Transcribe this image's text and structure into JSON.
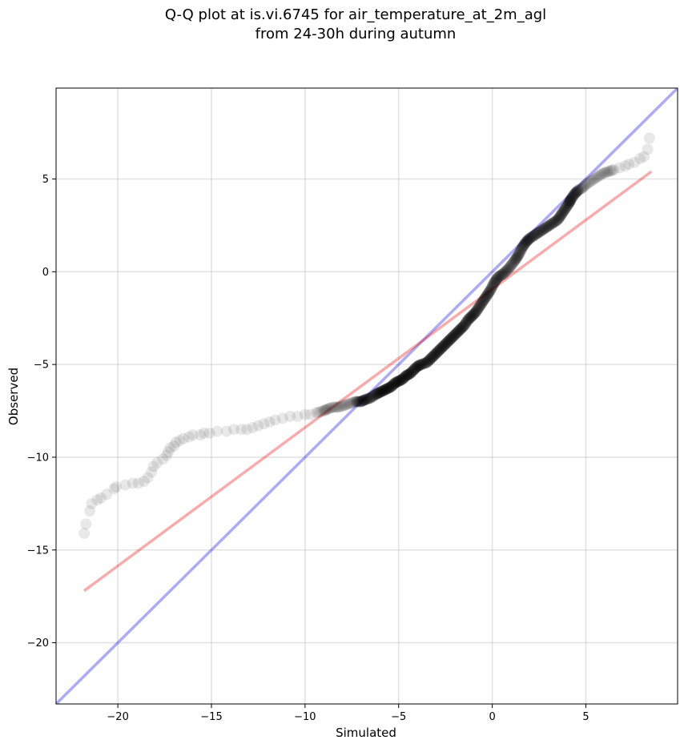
{
  "chart_data": {
    "type": "scatter",
    "title": [
      "Q-Q plot at is.vi.6745 for air_temperature_at_2m_agl",
      "from 24-30h during autumn"
    ],
    "xlabel": "Simulated",
    "ylabel": "Observed",
    "xlim": [
      -23.3,
      9.9
    ],
    "ylim": [
      -23.3,
      9.9
    ],
    "xticks": [
      -20,
      -15,
      -10,
      -5,
      0,
      5
    ],
    "yticks": [
      5,
      0,
      -5,
      -10,
      -15,
      -20
    ],
    "xtick_labels": [
      "−20",
      "−15",
      "−10",
      "−5",
      "0",
      "5"
    ],
    "ytick_labels": [
      "5",
      "0",
      "−5",
      "−10",
      "−15",
      "−20"
    ],
    "grid": true,
    "series": [
      {
        "kind": "quantile_points",
        "color": "#000000",
        "opacity": 0.09,
        "points": [
          [
            -21.8,
            -14.1
          ],
          [
            -21.7,
            -13.6
          ],
          [
            -21.5,
            -12.9
          ],
          [
            -21.4,
            -12.5
          ],
          [
            -21.1,
            -12.3
          ],
          [
            -20.9,
            -12.2
          ],
          [
            -20.6,
            -12.0
          ],
          [
            -20.2,
            -11.7
          ],
          [
            -20.1,
            -11.6
          ],
          [
            -19.6,
            -11.5
          ],
          [
            -19.2,
            -11.4
          ],
          [
            -18.9,
            -11.4
          ],
          [
            -18.6,
            -11.3
          ],
          [
            -18.4,
            -11.1
          ],
          [
            -18.2,
            -10.8
          ],
          [
            -18.1,
            -10.5
          ],
          [
            -17.9,
            -10.3
          ],
          [
            -17.6,
            -10.1
          ],
          [
            -17.4,
            -9.9
          ],
          [
            -17.3,
            -9.7
          ],
          [
            -17.2,
            -9.5
          ],
          [
            -17.0,
            -9.4
          ],
          [
            -16.9,
            -9.2
          ],
          [
            -16.7,
            -9.1
          ],
          [
            -16.5,
            -9.0
          ],
          [
            -16.2,
            -8.9
          ],
          [
            -16.0,
            -8.8
          ],
          [
            -15.6,
            -8.8
          ],
          [
            -15.4,
            -8.7
          ],
          [
            -15.1,
            -8.7
          ],
          [
            -14.7,
            -8.6
          ],
          [
            -14.2,
            -8.6
          ],
          [
            -13.8,
            -8.5
          ],
          [
            -13.4,
            -8.5
          ],
          [
            -13.1,
            -8.5
          ],
          [
            -12.8,
            -8.4
          ],
          [
            -12.5,
            -8.3
          ],
          [
            -12.2,
            -8.2
          ],
          [
            -11.9,
            -8.1
          ],
          [
            -11.6,
            -8.0
          ],
          [
            -11.2,
            -7.9
          ],
          [
            -10.8,
            -7.8
          ],
          [
            -10.4,
            -7.8
          ],
          [
            -10.0,
            -7.7
          ],
          [
            -9.7,
            -7.7
          ],
          [
            -9.4,
            -7.6
          ],
          [
            -9.0,
            -7.5
          ],
          [
            -8.8,
            -7.4
          ],
          [
            -8.5,
            -7.3
          ],
          [
            -8.2,
            -7.3
          ],
          [
            -7.9,
            -7.2
          ],
          [
            -7.6,
            -7.1
          ],
          [
            -7.3,
            -7.0
          ],
          [
            -7.0,
            -7.0
          ],
          [
            -6.8,
            -6.9
          ],
          [
            -6.5,
            -6.8
          ],
          [
            -6.2,
            -6.6
          ],
          [
            -6.0,
            -6.5
          ],
          [
            -5.8,
            -6.4
          ],
          [
            -5.6,
            -6.3
          ],
          [
            -5.4,
            -6.2
          ],
          [
            -5.2,
            -6.0
          ],
          [
            -5.0,
            -5.9
          ],
          [
            -4.8,
            -5.8
          ],
          [
            -4.6,
            -5.6
          ],
          [
            -4.4,
            -5.5
          ],
          [
            -4.2,
            -5.3
          ],
          [
            -4.0,
            -5.1
          ],
          [
            -3.8,
            -5.0
          ],
          [
            -3.5,
            -4.9
          ],
          [
            -3.3,
            -4.7
          ],
          [
            -3.1,
            -4.5
          ],
          [
            -2.9,
            -4.3
          ],
          [
            -2.7,
            -4.1
          ],
          [
            -2.5,
            -3.9
          ],
          [
            -2.3,
            -3.7
          ],
          [
            -2.1,
            -3.5
          ],
          [
            -1.9,
            -3.3
          ],
          [
            -1.7,
            -3.1
          ],
          [
            -1.5,
            -2.9
          ],
          [
            -1.3,
            -2.6
          ],
          [
            -1.1,
            -2.4
          ],
          [
            -0.9,
            -2.2
          ],
          [
            -0.7,
            -1.9
          ],
          [
            -0.5,
            -1.6
          ],
          [
            -0.3,
            -1.3
          ],
          [
            -0.1,
            -1.0
          ],
          [
            0.1,
            -0.6
          ],
          [
            0.3,
            -0.3
          ],
          [
            0.6,
            -0.1
          ],
          [
            0.9,
            0.2
          ],
          [
            1.2,
            0.6
          ],
          [
            1.4,
            0.9
          ],
          [
            1.6,
            1.3
          ],
          [
            1.8,
            1.6
          ],
          [
            2.0,
            1.8
          ],
          [
            2.3,
            2.0
          ],
          [
            2.6,
            2.2
          ],
          [
            2.9,
            2.4
          ],
          [
            3.2,
            2.6
          ],
          [
            3.5,
            2.8
          ],
          [
            3.7,
            3.1
          ],
          [
            3.9,
            3.4
          ],
          [
            4.1,
            3.7
          ],
          [
            4.2,
            3.9
          ],
          [
            4.4,
            4.2
          ],
          [
            4.6,
            4.4
          ],
          [
            4.8,
            4.5
          ],
          [
            5.0,
            4.7
          ],
          [
            5.3,
            4.9
          ],
          [
            5.6,
            5.1
          ],
          [
            5.9,
            5.3
          ],
          [
            6.2,
            5.4
          ],
          [
            6.5,
            5.5
          ],
          [
            6.8,
            5.6
          ],
          [
            7.1,
            5.7
          ],
          [
            7.3,
            5.8
          ],
          [
            7.6,
            5.9
          ],
          [
            7.9,
            6.1
          ],
          [
            8.1,
            6.2
          ],
          [
            8.3,
            6.6
          ],
          [
            8.4,
            7.2
          ]
        ]
      },
      {
        "kind": "identity_line",
        "color": "#0000ee",
        "opacity": 0.33,
        "from": [
          -23.3,
          -23.3
        ],
        "to": [
          9.9,
          9.9
        ]
      },
      {
        "kind": "fit_line",
        "color": "#ee0000",
        "opacity": 0.33,
        "from": [
          -21.8,
          -17.2
        ],
        "to": [
          8.5,
          5.4
        ]
      }
    ]
  }
}
